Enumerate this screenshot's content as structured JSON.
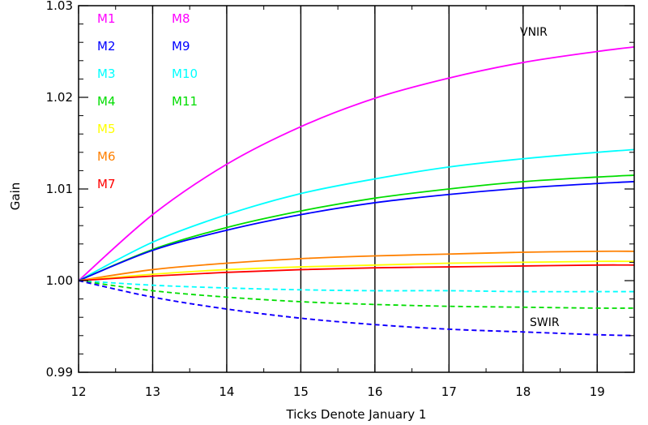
{
  "chart_data": {
    "type": "line",
    "title": "",
    "xlabel": "Ticks Denote January 1",
    "ylabel": "Gain",
    "xlim": [
      12,
      19.5
    ],
    "ylim": [
      0.99,
      1.03
    ],
    "x_ticks": [
      12,
      13,
      14,
      15,
      16,
      17,
      18,
      19
    ],
    "x_tick_labels": [
      "12",
      "13",
      "14",
      "15",
      "16",
      "17",
      "18",
      "19"
    ],
    "y_ticks": [
      0.99,
      1.0,
      1.01,
      1.02,
      1.03
    ],
    "y_tick_labels": [
      "0.99",
      "1.00",
      "1.01",
      "1.02",
      "1.03"
    ],
    "vertical_gridlines_at": [
      13,
      14,
      15,
      16,
      17,
      18,
      19
    ],
    "annotations": [
      "VNIR",
      "SWIR"
    ],
    "legend": [
      {
        "label": "M1",
        "color": "#ff00ff"
      },
      {
        "label": "M2",
        "color": "#0000ff"
      },
      {
        "label": "M3",
        "color": "#00ffff"
      },
      {
        "label": "M4",
        "color": "#00dd00"
      },
      {
        "label": "M5",
        "color": "#ffff00"
      },
      {
        "label": "M6",
        "color": "#ff8000"
      },
      {
        "label": "M7",
        "color": "#ff0000"
      },
      {
        "label": "M8",
        "color": "#ff00ff"
      },
      {
        "label": "M9",
        "color": "#0000ff"
      },
      {
        "label": "M10",
        "color": "#00ffff"
      },
      {
        "label": "M11",
        "color": "#00dd00"
      }
    ],
    "series": [
      {
        "label": "M1",
        "color": "#ff00ff",
        "dash": false,
        "x": [
          12,
          13,
          14,
          15,
          16,
          17,
          18,
          19,
          19.5
        ],
        "y": [
          1.0,
          1.0072,
          1.0127,
          1.0168,
          1.0199,
          1.0221,
          1.0238,
          1.025,
          1.0255
        ]
      },
      {
        "label": "M3",
        "color": "#00ffff",
        "dash": false,
        "x": [
          12,
          13,
          14,
          15,
          16,
          17,
          18,
          19,
          19.5
        ],
        "y": [
          1.0,
          1.0042,
          1.0072,
          1.0095,
          1.0111,
          1.0124,
          1.0133,
          1.014,
          1.0143
        ]
      },
      {
        "label": "M4",
        "color": "#00dd00",
        "dash": false,
        "x": [
          12,
          13,
          14,
          15,
          16,
          17,
          18,
          19,
          19.5
        ],
        "y": [
          1.0,
          1.0034,
          1.0058,
          1.0076,
          1.009,
          1.01,
          1.0108,
          1.0113,
          1.0115
        ]
      },
      {
        "label": "M2",
        "color": "#0000ff",
        "dash": false,
        "x": [
          12,
          13,
          14,
          15,
          16,
          17,
          18,
          19,
          19.5
        ],
        "y": [
          1.0,
          1.0033,
          1.0055,
          1.0072,
          1.0085,
          1.0094,
          1.0101,
          1.0106,
          1.0108
        ]
      },
      {
        "label": "M6",
        "color": "#ff8000",
        "dash": false,
        "x": [
          12,
          13,
          14,
          15,
          16,
          17,
          18,
          19,
          19.5
        ],
        "y": [
          1.0,
          1.0012,
          1.0019,
          1.0024,
          1.0027,
          1.0029,
          1.0031,
          1.0032,
          1.0032
        ]
      },
      {
        "label": "M5",
        "color": "#ffff00",
        "dash": false,
        "x": [
          12,
          13,
          14,
          15,
          16,
          17,
          18,
          19,
          19.5
        ],
        "y": [
          1.0,
          1.0007,
          1.0012,
          1.0015,
          1.0017,
          1.0019,
          1.002,
          1.0021,
          1.0021
        ]
      },
      {
        "label": "M7",
        "color": "#ff0000",
        "dash": false,
        "x": [
          12,
          13,
          14,
          15,
          16,
          17,
          18,
          19,
          19.5
        ],
        "y": [
          1.0,
          1.0005,
          1.0009,
          1.0012,
          1.0014,
          1.0015,
          1.0016,
          1.0017,
          1.0017
        ]
      },
      {
        "label": "M10",
        "color": "#00ffff",
        "dash": true,
        "x": [
          12,
          13,
          14,
          15,
          16,
          17,
          18,
          19,
          19.5
        ],
        "y": [
          1.0,
          0.9995,
          0.9992,
          0.999,
          0.9989,
          0.9989,
          0.9988,
          0.9988,
          0.9988
        ]
      },
      {
        "label": "M11",
        "color": "#00dd00",
        "dash": true,
        "x": [
          12,
          13,
          14,
          15,
          16,
          17,
          18,
          19,
          19.5
        ],
        "y": [
          1.0,
          0.9989,
          0.9982,
          0.9977,
          0.9974,
          0.9972,
          0.9971,
          0.997,
          0.997
        ]
      },
      {
        "label": "M8",
        "color": "#ff00ff",
        "dash": true,
        "x": [
          12,
          13,
          14,
          15,
          16,
          17,
          18,
          19,
          19.5
        ],
        "y": [
          1.0,
          0.9982,
          0.9969,
          0.9959,
          0.9952,
          0.9947,
          0.9944,
          0.9941,
          0.994
        ]
      },
      {
        "label": "M9",
        "color": "#0000ff",
        "dash": true,
        "x": [
          12,
          13,
          14,
          15,
          16,
          17,
          18,
          19,
          19.5
        ],
        "y": [
          1.0,
          0.9982,
          0.9969,
          0.9959,
          0.9952,
          0.9947,
          0.9944,
          0.9941,
          0.994
        ]
      }
    ]
  }
}
